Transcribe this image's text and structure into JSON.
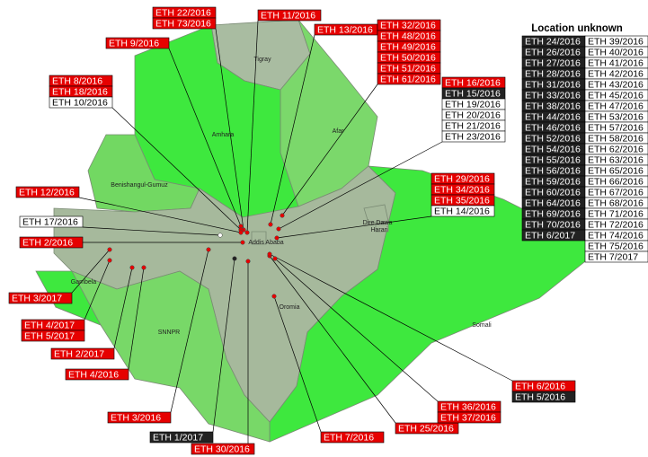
{
  "regions": [
    "Tigray",
    "Afar",
    "Amhara",
    "Benishangul-Gumuz",
    "Dire Dawa",
    "Harari",
    "Addis Ababa",
    "Gambela",
    "SNNPR",
    "Oromia",
    "Somali"
  ],
  "label_groups": [
    {
      "labels": [
        {
          "text": "ETH 22/2016",
          "color": "#e60000"
        },
        {
          "text": "ETH 73/2016",
          "color": "#e60000"
        }
      ]
    },
    {
      "labels": [
        {
          "text": "ETH 11/2016",
          "color": "#e60000"
        }
      ]
    },
    {
      "labels": [
        {
          "text": "ETH 13/2016",
          "color": "#e60000"
        }
      ]
    },
    {
      "labels": [
        {
          "text": "ETH 9/2016",
          "color": "#e60000"
        }
      ]
    },
    {
      "labels": [
        {
          "text": "ETH 32/2016",
          "color": "#e60000"
        },
        {
          "text": "ETH 48/2016",
          "color": "#e60000"
        },
        {
          "text": "ETH 49/2016",
          "color": "#e60000"
        },
        {
          "text": "ETH 50/2016",
          "color": "#e60000"
        },
        {
          "text": "ETH 51/2016",
          "color": "#e60000"
        },
        {
          "text": "ETH 61/2016",
          "color": "#e60000"
        }
      ]
    },
    {
      "labels": [
        {
          "text": "ETH 8/2016",
          "color": "#e60000"
        },
        {
          "text": "ETH 18/2016",
          "color": "#e60000"
        },
        {
          "text": "ETH 10/2016",
          "color": "#ffffff"
        }
      ]
    },
    {
      "labels": [
        {
          "text": "ETH 16/2016",
          "color": "#e60000"
        },
        {
          "text": "ETH 15/2016",
          "color": "#222222"
        },
        {
          "text": "ETH 19/2016",
          "color": "#ffffff"
        },
        {
          "text": "ETH 20/2016",
          "color": "#ffffff"
        },
        {
          "text": "ETH 21/2016",
          "color": "#ffffff"
        },
        {
          "text": "ETH 23/2016",
          "color": "#ffffff"
        }
      ]
    },
    {
      "labels": [
        {
          "text": "ETH 12/2016",
          "color": "#e60000"
        }
      ]
    },
    {
      "labels": [
        {
          "text": "ETH 17/2016",
          "color": "#ffffff"
        }
      ]
    },
    {
      "labels": [
        {
          "text": "ETH 2/2016",
          "color": "#e60000"
        }
      ]
    },
    {
      "labels": [
        {
          "text": "ETH 29/2016",
          "color": "#e60000"
        },
        {
          "text": "ETH 34/2016",
          "color": "#e60000"
        },
        {
          "text": "ETH 35/2016",
          "color": "#e60000"
        },
        {
          "text": "ETH 14/2016",
          "color": "#ffffff"
        }
      ]
    },
    {
      "labels": [
        {
          "text": "ETH 3/2017",
          "color": "#e60000"
        }
      ]
    },
    {
      "labels": [
        {
          "text": "ETH 4/2017",
          "color": "#e60000"
        },
        {
          "text": "ETH 5/2017",
          "color": "#e60000"
        }
      ]
    },
    {
      "labels": [
        {
          "text": "ETH 2/2017",
          "color": "#e60000"
        }
      ]
    },
    {
      "labels": [
        {
          "text": "ETH 4/2016",
          "color": "#e60000"
        }
      ]
    },
    {
      "labels": [
        {
          "text": "ETH 3/2016",
          "color": "#e60000"
        }
      ]
    },
    {
      "labels": [
        {
          "text": "ETH 1/2017",
          "color": "#222222"
        }
      ]
    },
    {
      "labels": [
        {
          "text": "ETH 30/2016",
          "color": "#e60000"
        }
      ]
    },
    {
      "labels": [
        {
          "text": "ETH 7/2016",
          "color": "#e60000"
        }
      ]
    },
    {
      "labels": [
        {
          "text": "ETH 25/2016",
          "color": "#e60000"
        }
      ]
    },
    {
      "labels": [
        {
          "text": "ETH 36/2016",
          "color": "#e60000"
        },
        {
          "text": "ETH 37/2016",
          "color": "#e60000"
        }
      ]
    },
    {
      "labels": [
        {
          "text": "ETH 6/2016",
          "color": "#e60000"
        },
        {
          "text": "ETH 5/2016",
          "color": "#222222"
        }
      ]
    }
  ],
  "unknown": {
    "title": "Location unknown",
    "black": [
      "ETH 24/2016",
      "ETH 26/2016",
      "ETH 27/2016",
      "ETH 28/2016",
      "ETH 31/2016",
      "ETH 33/2016",
      "ETH 38/2016",
      "ETH 44/2016",
      "ETH 46/2016",
      "ETH 52/2016",
      "ETH 54/2016",
      "ETH 55/2016",
      "ETH 56/2016",
      "ETH 59/2016",
      "ETH 60/2016",
      "ETH 64/2016",
      "ETH 69/2016",
      "ETH 70/2016",
      "ETH 6/2017"
    ],
    "white": [
      "ETH 39/2016",
      "ETH 40/2016",
      "ETH 41/2016",
      "ETH 42/2016",
      "ETH 43/2016",
      "ETH 45/2016",
      "ETH 47/2016",
      "ETH 53/2016",
      "ETH 57/2016",
      "ETH 58/2016",
      "ETH 62/2016",
      "ETH 63/2016",
      "ETH 65/2016",
      "ETH 66/2016",
      "ETH 67/2016",
      "ETH 68/2016",
      "ETH 71/2016",
      "ETH 72/2016",
      "ETH 74/2016",
      "ETH 75/2016",
      "ETH 7/2017"
    ]
  }
}
